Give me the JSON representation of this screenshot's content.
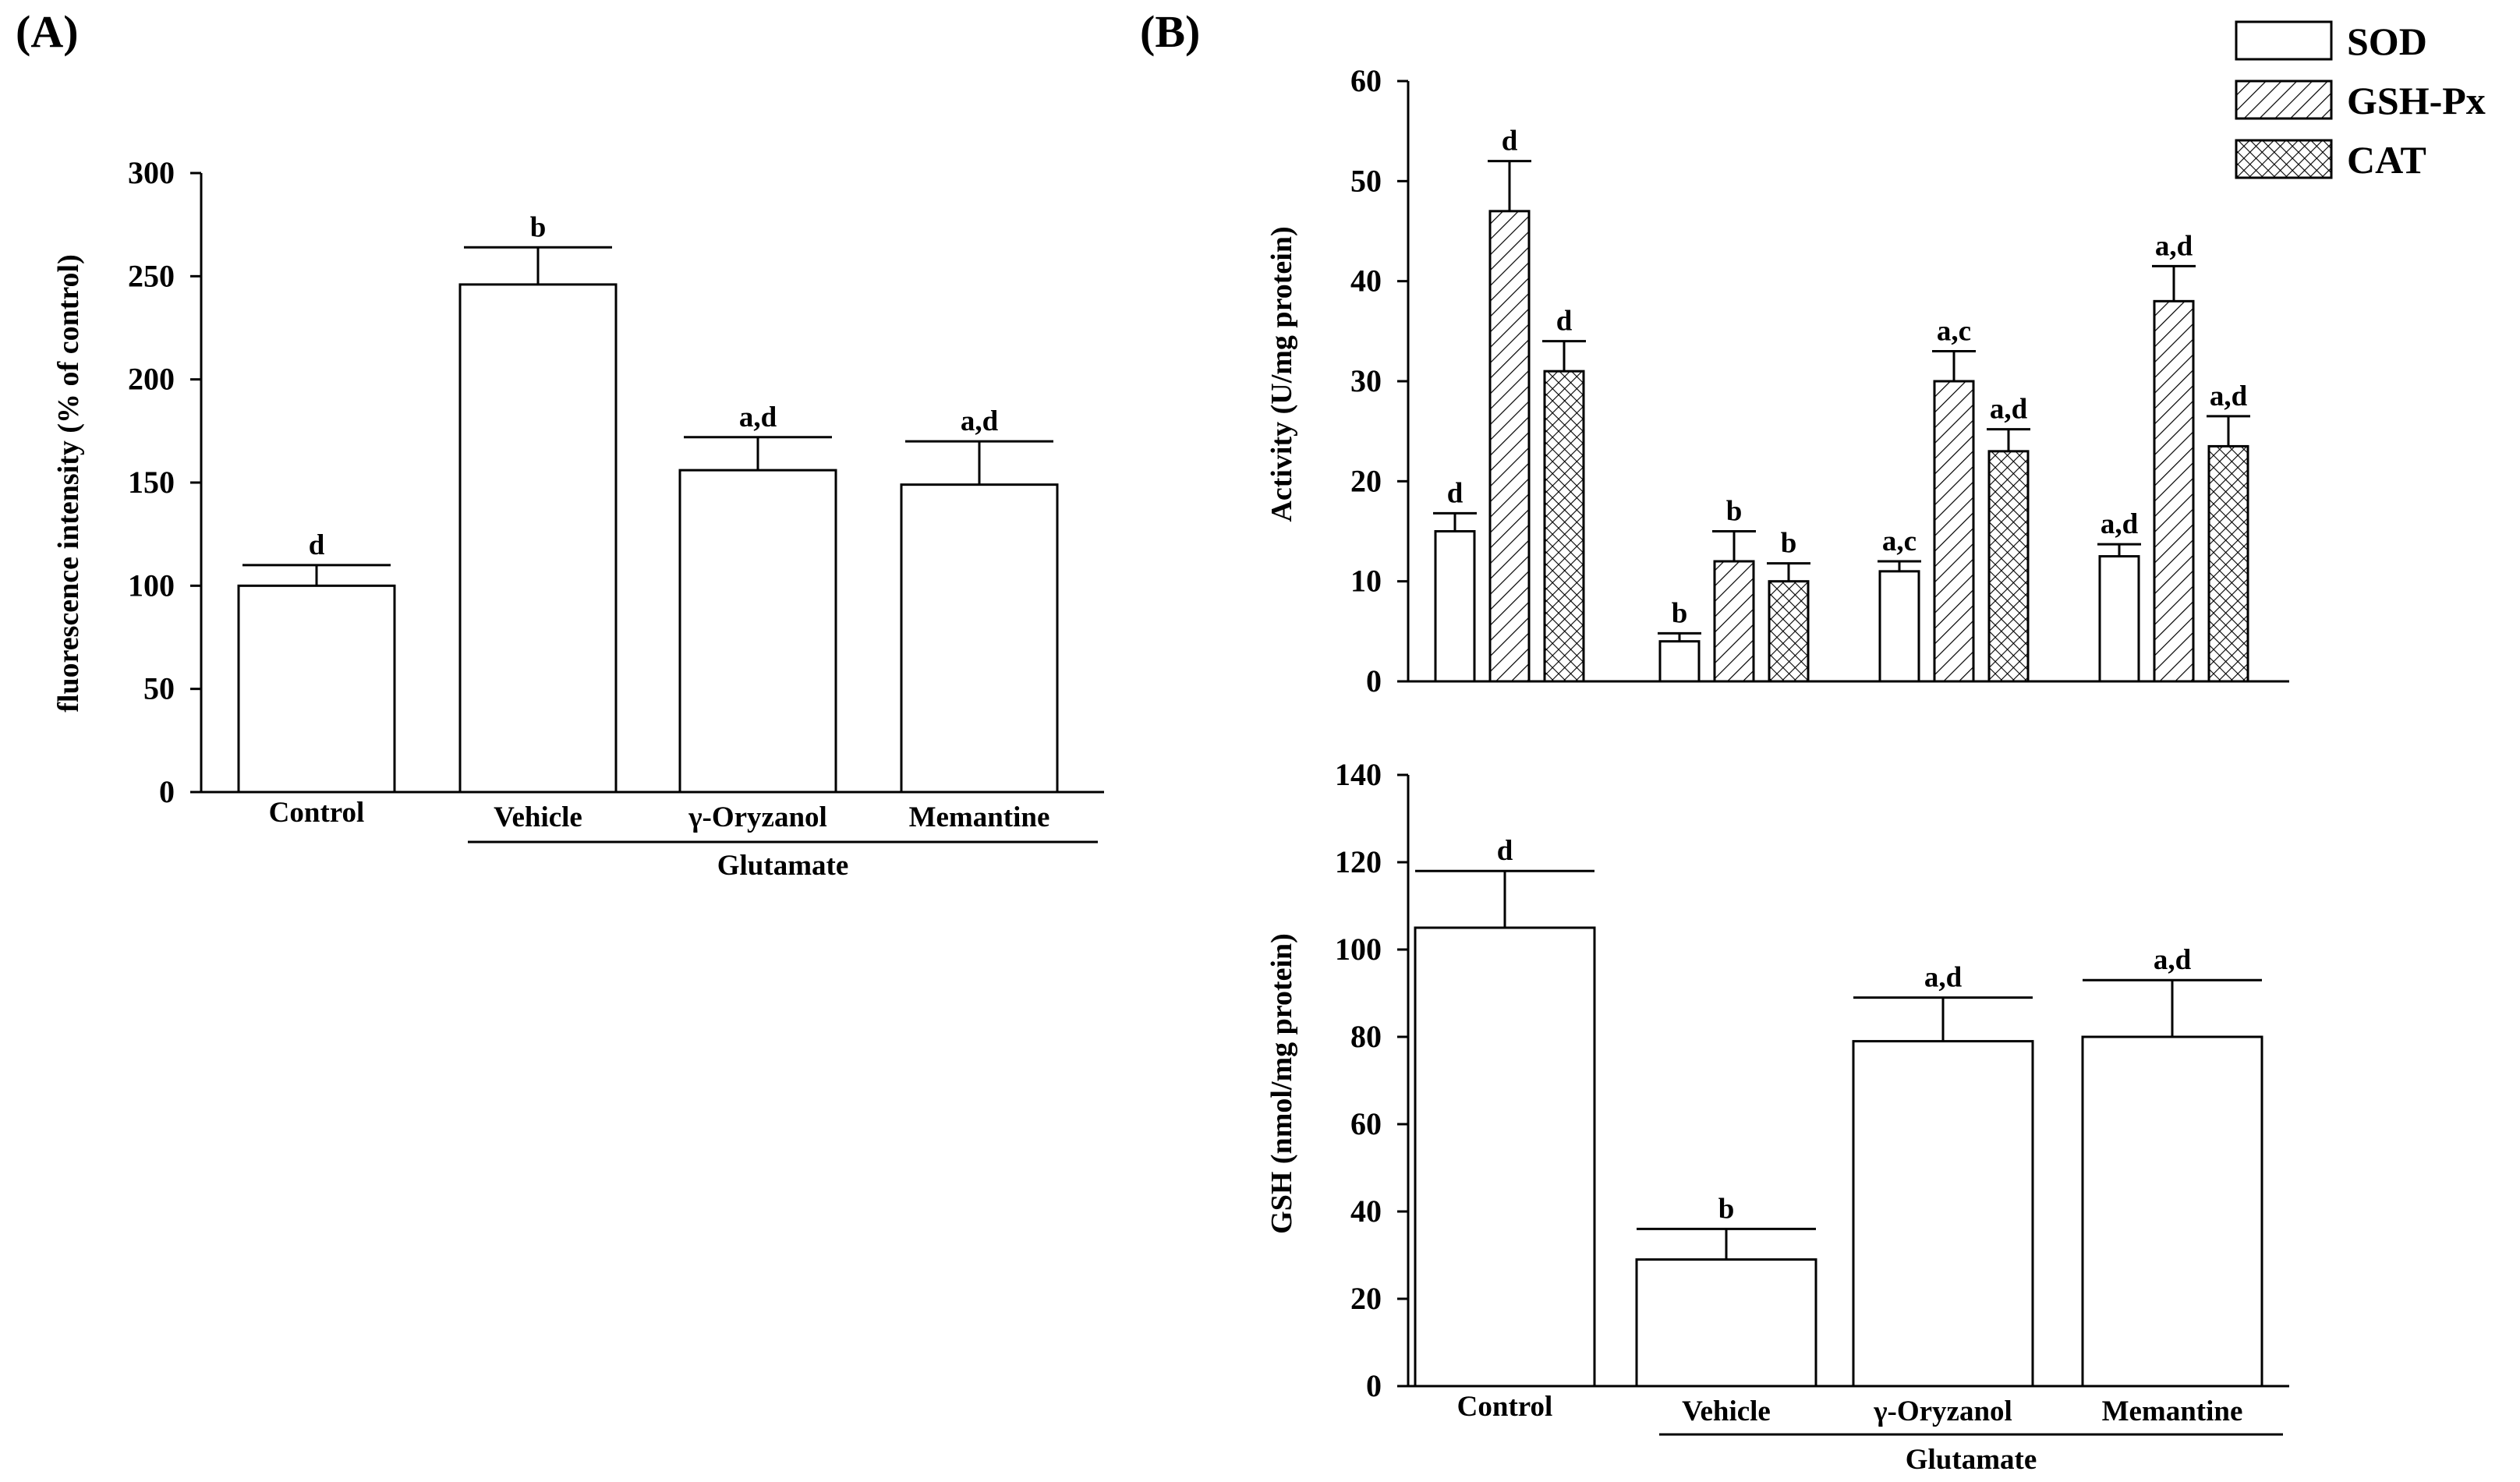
{
  "colors": {
    "bar_fill": "#ffffff",
    "line": "#000000",
    "text": "#000000"
  },
  "chart_data": [
    {
      "id": "A",
      "type": "bar",
      "panel_label": "(A)",
      "ylabel": "fluorescence intensity (% of control)",
      "xlabel": "",
      "ylim": [
        0,
        300
      ],
      "yticks": [
        0,
        50,
        100,
        150,
        200,
        250,
        300
      ],
      "categories": [
        "Control",
        "Vehicle",
        "γ-Oryzanol",
        "Memantine"
      ],
      "group_label": "Glutamate",
      "grouped_categories": [
        "Vehicle",
        "γ-Oryzanol",
        "Memantine"
      ],
      "values": [
        100,
        246,
        156,
        149
      ],
      "errors": [
        10,
        18,
        16,
        21
      ],
      "significance": [
        "d",
        "b",
        "a,d",
        "a,d"
      ]
    },
    {
      "id": "B-activity",
      "type": "bar",
      "panel_label": "(B)",
      "ylabel": "Activity (U/mg protein)",
      "xlabel": "",
      "ylim": [
        0,
        60
      ],
      "yticks": [
        0,
        10,
        20,
        30,
        40,
        50,
        60
      ],
      "categories": [
        "Control",
        "Vehicle",
        "γ-Oryzanol",
        "Memantine"
      ],
      "legend": {
        "placement": "top-right"
      },
      "series": [
        {
          "name": "SOD",
          "pattern": "plain",
          "values": [
            15,
            4,
            11,
            12.5
          ],
          "errors": [
            1.8,
            0.8,
            1.0,
            1.2
          ],
          "significance": [
            "d",
            "b",
            "a,c",
            "a,d"
          ]
        },
        {
          "name": "GSH-Px",
          "pattern": "hatch",
          "values": [
            47,
            12,
            30,
            38
          ],
          "errors": [
            5,
            3,
            3,
            3.5
          ],
          "significance": [
            "d",
            "b",
            "a,c",
            "a,d"
          ]
        },
        {
          "name": "CAT",
          "pattern": "crosshatch",
          "values": [
            31,
            10,
            23,
            23.5
          ],
          "errors": [
            3,
            1.8,
            2.2,
            3
          ],
          "significance": [
            "d",
            "b",
            "a,d",
            "a,d"
          ]
        }
      ]
    },
    {
      "id": "B-gsh",
      "type": "bar",
      "ylabel": "GSH (nmol/mg protein)",
      "xlabel": "",
      "ylim": [
        0,
        140
      ],
      "yticks": [
        0,
        20,
        40,
        60,
        80,
        100,
        120,
        140
      ],
      "categories": [
        "Control",
        "Vehicle",
        "γ-Oryzanol",
        "Memantine"
      ],
      "group_label": "Glutamate",
      "grouped_categories": [
        "Vehicle",
        "γ-Oryzanol",
        "Memantine"
      ],
      "values": [
        105,
        29,
        79,
        80
      ],
      "errors": [
        13,
        7,
        10,
        13
      ],
      "significance": [
        "d",
        "b",
        "a,d",
        "a,d"
      ]
    }
  ]
}
